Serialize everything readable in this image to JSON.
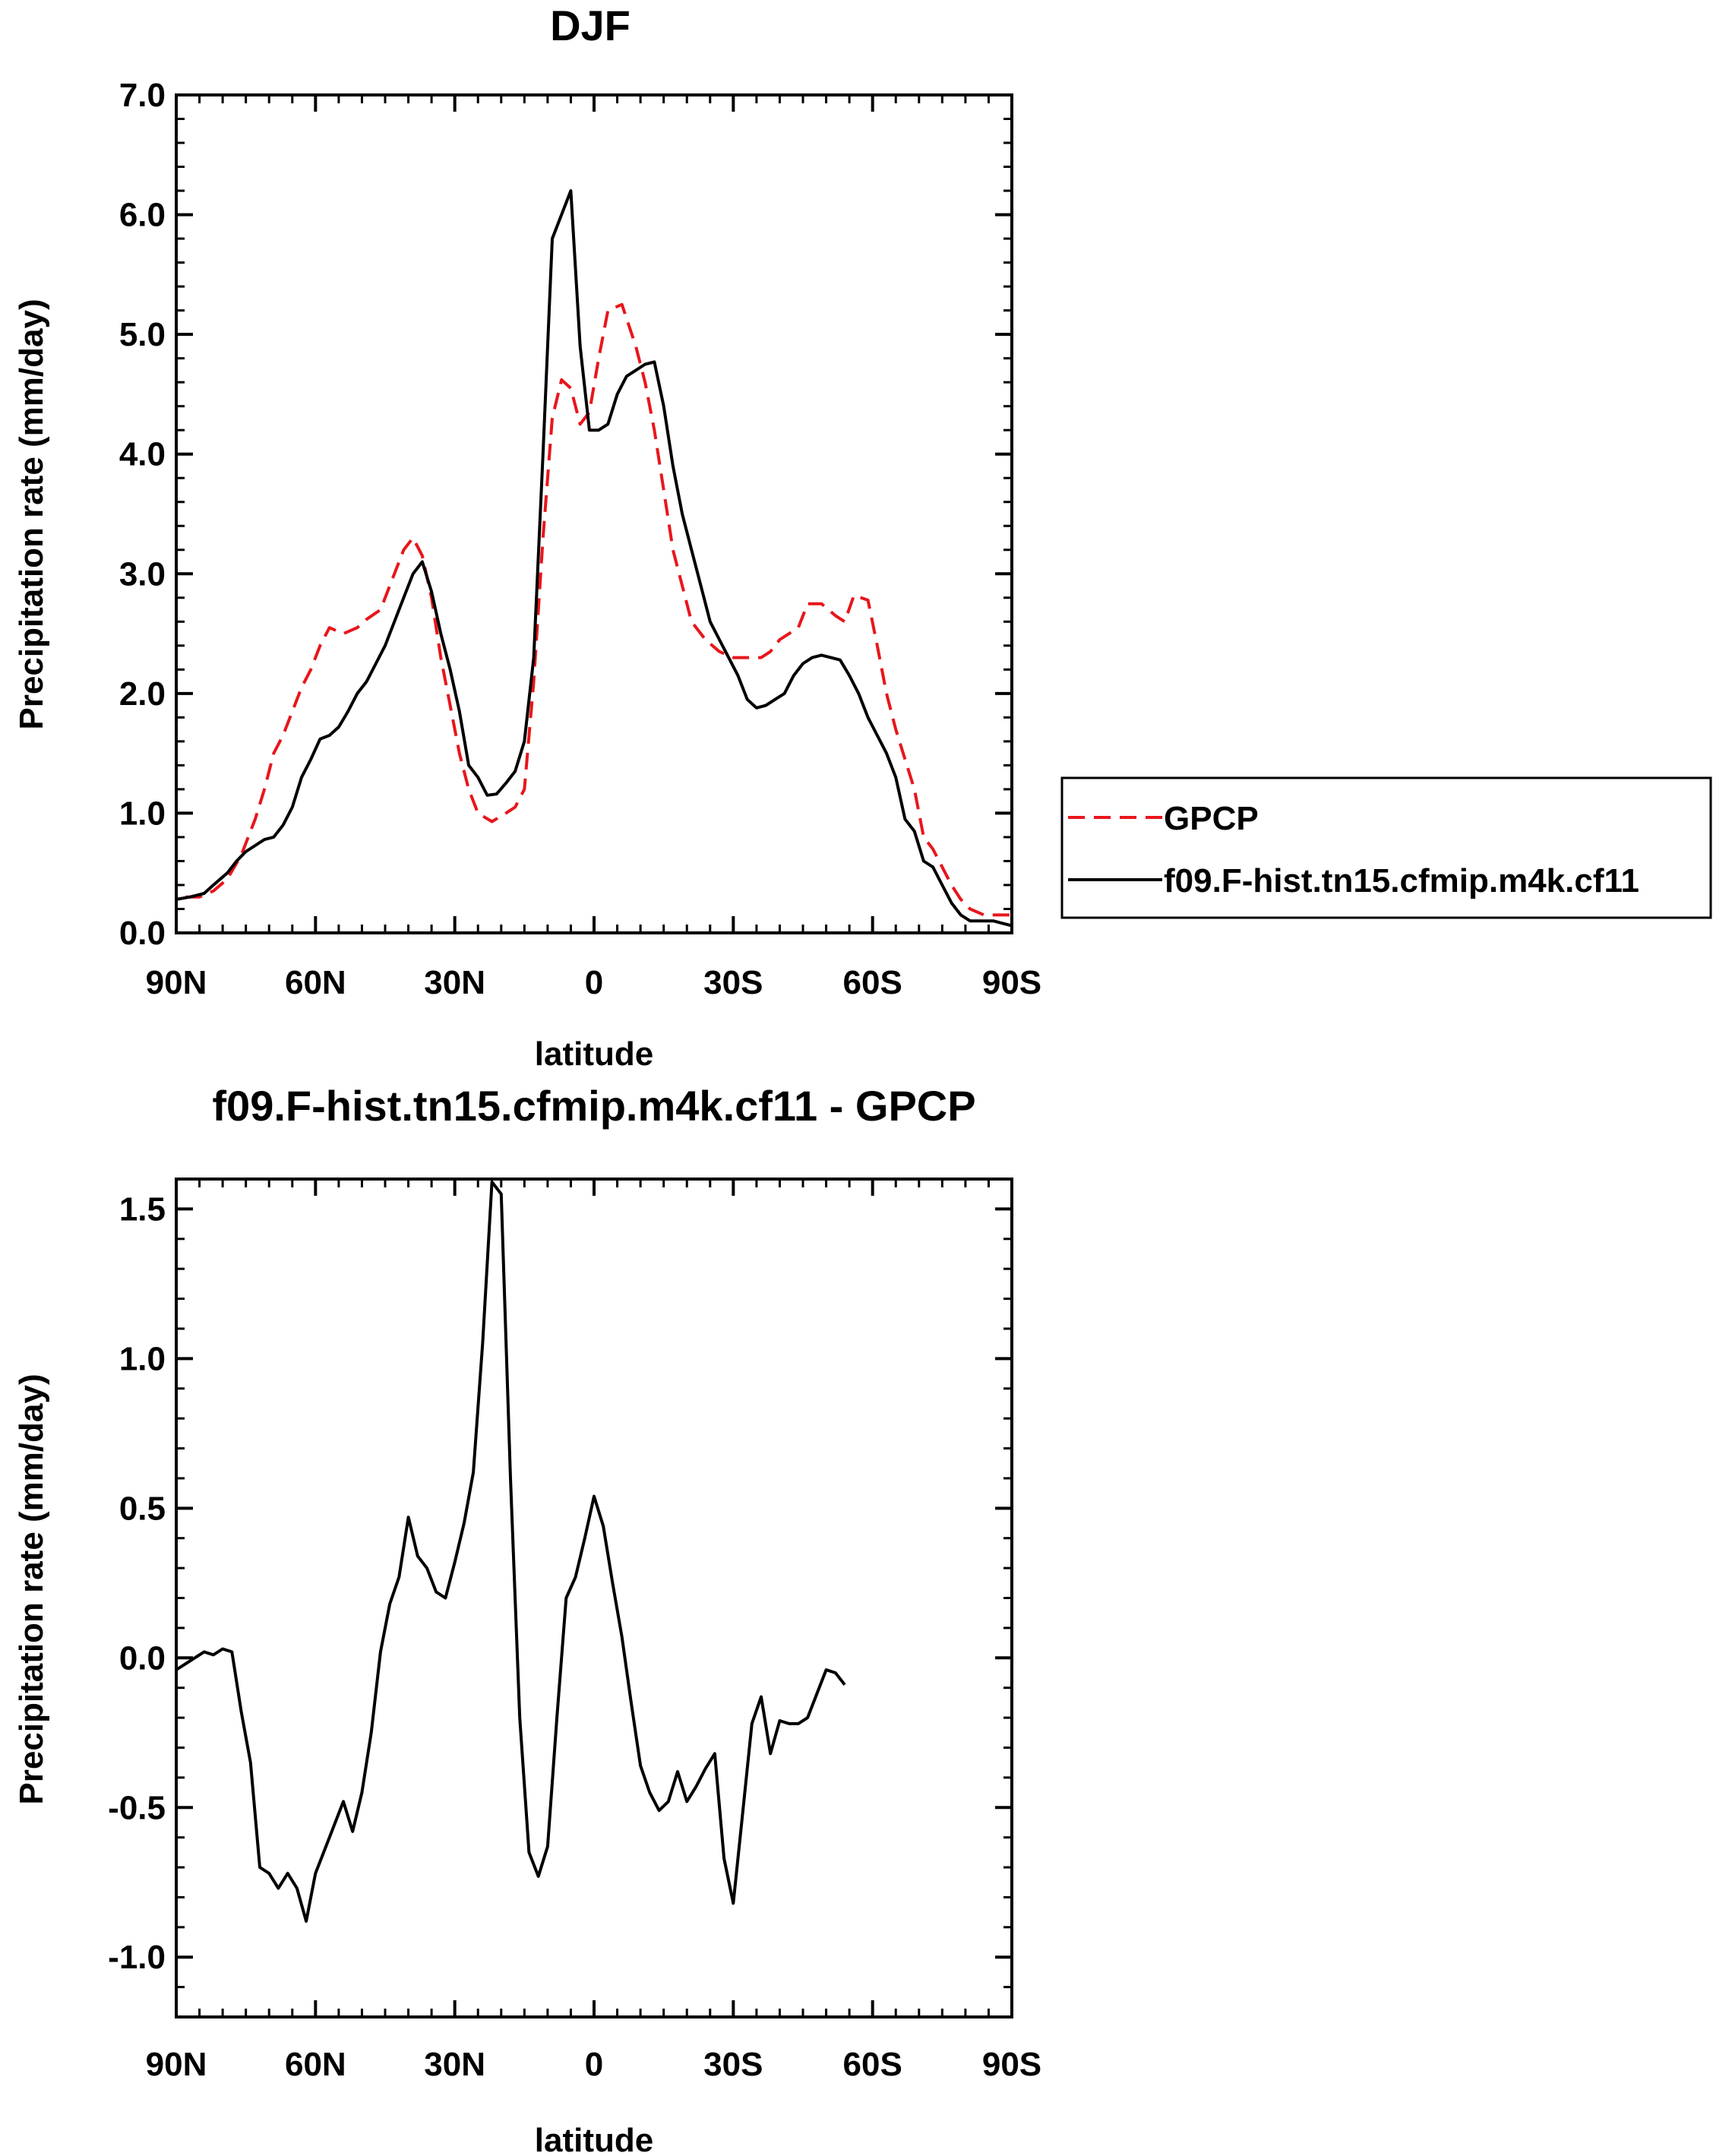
{
  "chart_data": [
    {
      "type": "line",
      "title": "DJF",
      "xlabel": "latitude",
      "ylabel": "Precipitation rate (mm/day)",
      "xlim": [
        90,
        -90
      ],
      "ylim": [
        0.0,
        7.0
      ],
      "x_ticks": [
        90,
        60,
        30,
        0,
        -30,
        -60,
        -90
      ],
      "x_tick_labels": [
        "90N",
        "60N",
        "30N",
        "0",
        "30S",
        "60S",
        "90S"
      ],
      "y_ticks": [
        0,
        1,
        2,
        3,
        4,
        5,
        6,
        7
      ],
      "y_tick_labels": [
        "0.0",
        "1.0",
        "2.0",
        "3.0",
        "4.0",
        "5.0",
        "6.0",
        "7.0"
      ],
      "legend_position": "right",
      "series": [
        {
          "name": "GPCP",
          "color": "#e8161b",
          "style": "dashed",
          "points": [
            [
              88,
              0.3
            ],
            [
              85,
              0.3
            ],
            [
              82,
              0.35
            ],
            [
              79,
              0.45
            ],
            [
              76,
              0.65
            ],
            [
              73,
              0.95
            ],
            [
              71,
              1.2
            ],
            [
              69,
              1.5
            ],
            [
              67,
              1.65
            ],
            [
              65,
              1.85
            ],
            [
              63,
              2.05
            ],
            [
              61,
              2.2
            ],
            [
              59,
              2.4
            ],
            [
              57,
              2.55
            ],
            [
              54,
              2.5
            ],
            [
              51,
              2.55
            ],
            [
              49,
              2.62
            ],
            [
              46,
              2.7
            ],
            [
              43,
              3.0
            ],
            [
              41,
              3.2
            ],
            [
              39,
              3.3
            ],
            [
              37,
              3.15
            ],
            [
              35,
              2.8
            ],
            [
              33,
              2.3
            ],
            [
              31,
              1.9
            ],
            [
              29,
              1.5
            ],
            [
              27,
              1.2
            ],
            [
              25,
              1.0
            ],
            [
              22,
              0.93
            ],
            [
              19,
              1.0
            ],
            [
              17,
              1.05
            ],
            [
              15,
              1.2
            ],
            [
              13,
              2.1
            ],
            [
              11,
              3.3
            ],
            [
              9,
              4.3
            ],
            [
              7,
              4.62
            ],
            [
              5,
              4.55
            ],
            [
              3,
              4.25
            ],
            [
              1,
              4.35
            ],
            [
              -1,
              4.8
            ],
            [
              -3,
              5.2
            ],
            [
              -6,
              5.25
            ],
            [
              -9,
              4.9
            ],
            [
              -11,
              4.6
            ],
            [
              -13,
              4.2
            ],
            [
              -15,
              3.7
            ],
            [
              -17,
              3.2
            ],
            [
              -19,
              2.9
            ],
            [
              -21,
              2.6
            ],
            [
              -24,
              2.45
            ],
            [
              -27,
              2.35
            ],
            [
              -30,
              2.3
            ],
            [
              -33,
              2.3
            ],
            [
              -36,
              2.3
            ],
            [
              -38,
              2.35
            ],
            [
              -40,
              2.45
            ],
            [
              -42,
              2.5
            ],
            [
              -44,
              2.55
            ],
            [
              -46,
              2.75
            ],
            [
              -49,
              2.75
            ],
            [
              -52,
              2.65
            ],
            [
              -54,
              2.6
            ],
            [
              -56,
              2.82
            ],
            [
              -59,
              2.78
            ],
            [
              -61,
              2.4
            ],
            [
              -63,
              2.0
            ],
            [
              -65,
              1.7
            ],
            [
              -67,
              1.45
            ],
            [
              -69,
              1.2
            ],
            [
              -71,
              0.8
            ],
            [
              -73,
              0.7
            ],
            [
              -75,
              0.55
            ],
            [
              -77,
              0.4
            ],
            [
              -79,
              0.28
            ],
            [
              -81,
              0.2
            ],
            [
              -84,
              0.15
            ],
            [
              -87,
              0.15
            ],
            [
              -90,
              0.15
            ]
          ]
        },
        {
          "name": "f09.F-hist.tn15.cfmip.m4k.cf11",
          "color": "#000000",
          "style": "solid",
          "points": [
            [
              90,
              0.28
            ],
            [
              87,
              0.3
            ],
            [
              84,
              0.33
            ],
            [
              82,
              0.4
            ],
            [
              79,
              0.5
            ],
            [
              77,
              0.6
            ],
            [
              75,
              0.68
            ],
            [
              73,
              0.73
            ],
            [
              71,
              0.78
            ],
            [
              69,
              0.8
            ],
            [
              67,
              0.9
            ],
            [
              65,
              1.05
            ],
            [
              63,
              1.3
            ],
            [
              61,
              1.45
            ],
            [
              59,
              1.62
            ],
            [
              57,
              1.65
            ],
            [
              55,
              1.72
            ],
            [
              53,
              1.85
            ],
            [
              51,
              2.0
            ],
            [
              49,
              2.1
            ],
            [
              47,
              2.25
            ],
            [
              45,
              2.4
            ],
            [
              43,
              2.6
            ],
            [
              41,
              2.8
            ],
            [
              39,
              3.0
            ],
            [
              37,
              3.1
            ],
            [
              35,
              2.85
            ],
            [
              33,
              2.5
            ],
            [
              31,
              2.2
            ],
            [
              29,
              1.85
            ],
            [
              27,
              1.4
            ],
            [
              25,
              1.3
            ],
            [
              23,
              1.15
            ],
            [
              21,
              1.16
            ],
            [
              19,
              1.25
            ],
            [
              17,
              1.35
            ],
            [
              15,
              1.6
            ],
            [
              13,
              2.3
            ],
            [
              11,
              4.0
            ],
            [
              9,
              5.8
            ],
            [
              7,
              6.0
            ],
            [
              5,
              6.2
            ],
            [
              3,
              4.9
            ],
            [
              1,
              4.2
            ],
            [
              -1,
              4.2
            ],
            [
              -3,
              4.25
            ],
            [
              -5,
              4.5
            ],
            [
              -7,
              4.65
            ],
            [
              -9,
              4.7
            ],
            [
              -11,
              4.75
            ],
            [
              -13,
              4.77
            ],
            [
              -15,
              4.4
            ],
            [
              -17,
              3.9
            ],
            [
              -19,
              3.5
            ],
            [
              -21,
              3.2
            ],
            [
              -23,
              2.9
            ],
            [
              -25,
              2.6
            ],
            [
              -27,
              2.45
            ],
            [
              -29,
              2.3
            ],
            [
              -31,
              2.15
            ],
            [
              -33,
              1.95
            ],
            [
              -35,
              1.88
            ],
            [
              -37,
              1.9
            ],
            [
              -39,
              1.95
            ],
            [
              -41,
              2.0
            ],
            [
              -43,
              2.15
            ],
            [
              -45,
              2.25
            ],
            [
              -47,
              2.3
            ],
            [
              -49,
              2.32
            ],
            [
              -51,
              2.3
            ],
            [
              -53,
              2.28
            ],
            [
              -55,
              2.15
            ],
            [
              -57,
              2.0
            ],
            [
              -59,
              1.8
            ],
            [
              -61,
              1.65
            ],
            [
              -63,
              1.5
            ],
            [
              -65,
              1.3
            ],
            [
              -67,
              0.95
            ],
            [
              -69,
              0.85
            ],
            [
              -71,
              0.6
            ],
            [
              -73,
              0.55
            ],
            [
              -75,
              0.4
            ],
            [
              -77,
              0.25
            ],
            [
              -79,
              0.15
            ],
            [
              -81,
              0.1
            ],
            [
              -84,
              0.1
            ],
            [
              -86,
              0.1
            ],
            [
              -88,
              0.08
            ],
            [
              -90,
              0.06
            ]
          ]
        }
      ]
    },
    {
      "type": "line",
      "title": "f09.F-hist.tn15.cfmip.m4k.cf11 - GPCP",
      "xlabel": "latitude",
      "ylabel": "Precipitation rate (mm/day)",
      "xlim": [
        90,
        -90
      ],
      "ylim": [
        -1.2,
        1.6
      ],
      "x_ticks": [
        90,
        60,
        30,
        0,
        -30,
        -60,
        -90
      ],
      "x_tick_labels": [
        "90N",
        "60N",
        "30N",
        "0",
        "30S",
        "60S",
        "90S"
      ],
      "y_ticks": [
        -1.0,
        -0.5,
        0.0,
        0.5,
        1.0,
        1.5
      ],
      "y_tick_labels": [
        "-1.0",
        "-0.5",
        "0.0",
        "0.5",
        "1.0",
        "1.5"
      ],
      "series": [
        {
          "name": "",
          "color": "#000000",
          "style": "solid",
          "points": [
            [
              90,
              -0.04
            ],
            [
              88,
              -0.02
            ],
            [
              86,
              0.0
            ],
            [
              84,
              0.02
            ],
            [
              82,
              0.01
            ],
            [
              80,
              0.03
            ],
            [
              78,
              0.02
            ],
            [
              76,
              -0.18
            ],
            [
              74,
              -0.35
            ],
            [
              72,
              -0.7
            ],
            [
              70,
              -0.72
            ],
            [
              68,
              -0.77
            ],
            [
              66,
              -0.72
            ],
            [
              64,
              -0.77
            ],
            [
              62,
              -0.88
            ],
            [
              60,
              -0.72
            ],
            [
              58,
              -0.64
            ],
            [
              56,
              -0.56
            ],
            [
              54,
              -0.48
            ],
            [
              52,
              -0.58
            ],
            [
              50,
              -0.45
            ],
            [
              48,
              -0.25
            ],
            [
              46,
              0.02
            ],
            [
              44,
              0.18
            ],
            [
              42,
              0.27
            ],
            [
              40,
              0.47
            ],
            [
              38,
              0.34
            ],
            [
              36,
              0.3
            ],
            [
              34,
              0.22
            ],
            [
              32,
              0.2
            ],
            [
              30,
              0.32
            ],
            [
              28,
              0.45
            ],
            [
              26,
              0.62
            ],
            [
              24,
              1.05
            ],
            [
              22,
              1.59
            ],
            [
              20,
              1.55
            ],
            [
              18,
              0.6
            ],
            [
              16,
              -0.2
            ],
            [
              14,
              -0.65
            ],
            [
              12,
              -0.73
            ],
            [
              10,
              -0.63
            ],
            [
              8,
              -0.2
            ],
            [
              6,
              0.2
            ],
            [
              4,
              0.27
            ],
            [
              2,
              0.4
            ],
            [
              0,
              0.54
            ],
            [
              -2,
              0.44
            ],
            [
              -4,
              0.25
            ],
            [
              -6,
              0.07
            ],
            [
              -8,
              -0.15
            ],
            [
              -10,
              -0.36
            ],
            [
              -12,
              -0.45
            ],
            [
              -14,
              -0.51
            ],
            [
              -16,
              -0.48
            ],
            [
              -18,
              -0.38
            ],
            [
              -20,
              -0.48
            ],
            [
              -22,
              -0.43
            ],
            [
              -24,
              -0.37
            ],
            [
              -26,
              -0.32
            ],
            [
              -28,
              -0.67
            ],
            [
              -30,
              -0.82
            ],
            [
              -32,
              -0.52
            ],
            [
              -34,
              -0.22
            ],
            [
              -36,
              -0.13
            ],
            [
              -38,
              -0.32
            ],
            [
              -40,
              -0.21
            ],
            [
              -42,
              -0.22
            ],
            [
              -44,
              -0.22
            ],
            [
              -46,
              -0.2
            ],
            [
              -48,
              -0.12
            ],
            [
              -50,
              -0.04
            ],
            [
              -52,
              -0.05
            ],
            [
              -54,
              -0.09
            ]
          ]
        }
      ]
    }
  ]
}
